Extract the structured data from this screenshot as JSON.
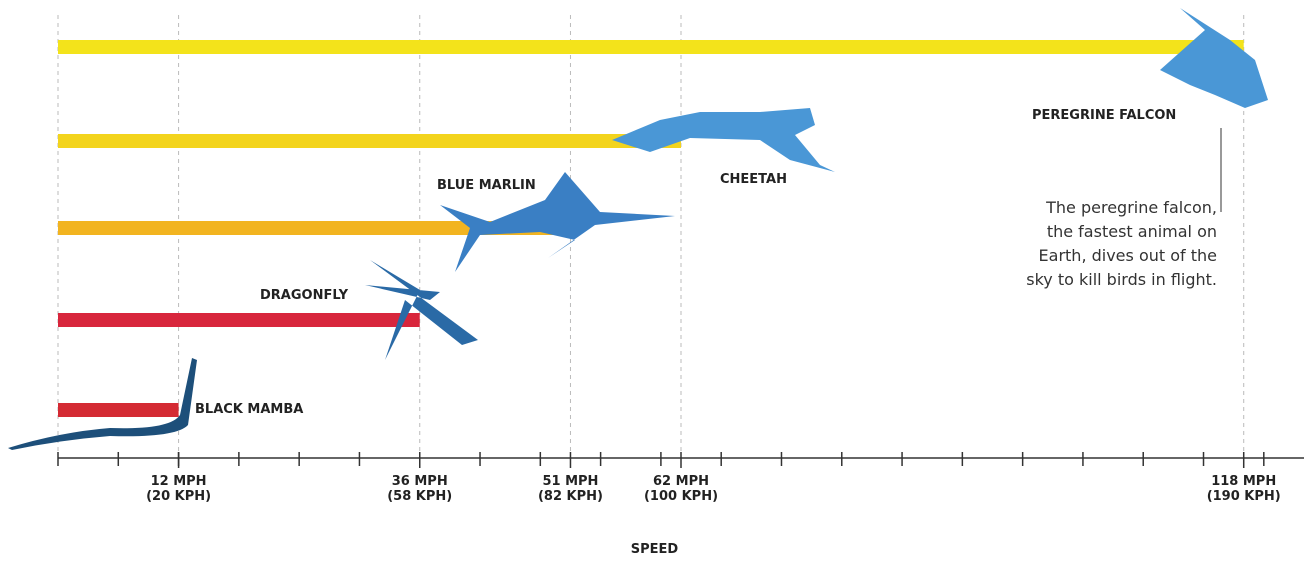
{
  "chart_data": {
    "type": "bar",
    "orientation": "horizontal",
    "categories": [
      "PEREGRINE FALCON",
      "CHEETAH",
      "BLUE MARLIN",
      "DRAGONFLY",
      "BLACK MAMBA"
    ],
    "values": [
      118,
      62,
      51,
      36,
      12
    ],
    "colors": [
      "#f3e31b",
      "#f3d41d",
      "#f2b420",
      "#d8263c",
      "#d42a33"
    ],
    "xlim": [
      0,
      124
    ],
    "xticks": [
      {
        "value": 12,
        "label": "12 MPH\n(20 KPH)"
      },
      {
        "value": 36,
        "label": "36 MPH\n(58 KPH)"
      },
      {
        "value": 51,
        "label": "51 MPH\n(82 KPH)"
      },
      {
        "value": 62,
        "label": "62 MPH\n(100 KPH)"
      },
      {
        "value": 118,
        "label": "118 MPH\n(190 KPH)"
      }
    ],
    "minor_xticks": [
      0,
      6,
      12,
      18,
      24,
      30,
      36,
      42,
      48,
      54,
      60,
      66,
      72,
      78,
      84,
      90,
      96,
      102,
      108,
      114,
      120
    ],
    "xlabel": "SPEED",
    "annotation": "The peregrine falcon,\nthe fastest animal on\nEarth, dives out of the\nsky to kill birds in flight.",
    "grid": true
  }
}
